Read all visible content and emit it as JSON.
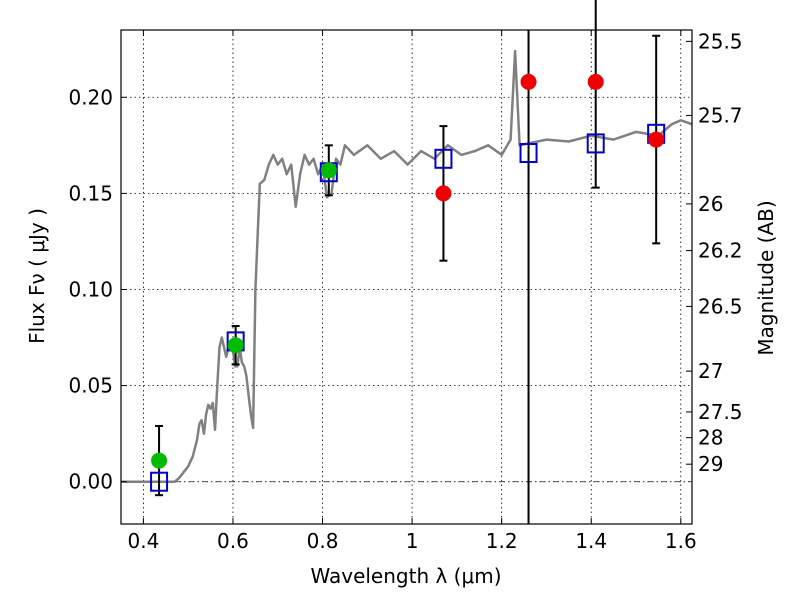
{
  "chart_data": {
    "type": "scatter",
    "xlabel": "Wavelength  λ (μm)",
    "ylabel": "Flux  Fν  ( μJy )",
    "ylabel_right": "Magnitude (AB)",
    "xlim": [
      0.35,
      1.625
    ],
    "ylim": [
      -0.022,
      0.235
    ],
    "x_ticks": [
      0.4,
      0.6,
      0.8,
      1.0,
      1.2,
      1.4,
      1.6
    ],
    "x_tick_labels": [
      "0.4",
      "0.6",
      "0.8",
      "1",
      "1.2",
      "1.4",
      "1.6"
    ],
    "y_ticks": [
      0.0,
      0.05,
      0.1,
      0.15,
      0.2
    ],
    "y_tick_labels": [
      "0.00",
      "0.05",
      "0.10",
      "0.15",
      "0.20"
    ],
    "right_ticks": [
      {
        "label": "25.5",
        "mag": 25.5
      },
      {
        "label": "25.7",
        "mag": 25.7
      },
      {
        "label": "26",
        "mag": 26.0
      },
      {
        "label": "26.2",
        "mag": 26.2
      },
      {
        "label": "26.5",
        "mag": 26.5
      },
      {
        "label": "27",
        "mag": 27.0
      },
      {
        "label": "27.5",
        "mag": 27.5
      },
      {
        "label": "28",
        "mag": 28.0
      },
      {
        "label": "29",
        "mag": 29.0
      }
    ],
    "grid": true,
    "vline_x": 1.26,
    "hline_y": 0.0,
    "series": [
      {
        "name": "model_sed",
        "kind": "line",
        "color": "#808080",
        "x": [
          0.35,
          0.47,
          0.48,
          0.5,
          0.51,
          0.52,
          0.525,
          0.53,
          0.535,
          0.54,
          0.545,
          0.55,
          0.555,
          0.56,
          0.565,
          0.57,
          0.575,
          0.58,
          0.585,
          0.59,
          0.6,
          0.605,
          0.61,
          0.615,
          0.62,
          0.625,
          0.63,
          0.635,
          0.64,
          0.645,
          0.65,
          0.66,
          0.67,
          0.68,
          0.69,
          0.7,
          0.71,
          0.72,
          0.73,
          0.74,
          0.75,
          0.76,
          0.77,
          0.78,
          0.79,
          0.8,
          0.81,
          0.82,
          0.83,
          0.84,
          0.85,
          0.87,
          0.9,
          0.93,
          0.96,
          0.99,
          1.02,
          1.05,
          1.08,
          1.11,
          1.14,
          1.17,
          1.2,
          1.22,
          1.23,
          1.235,
          1.24,
          1.26,
          1.3,
          1.35,
          1.4,
          1.45,
          1.5,
          1.55,
          1.58,
          1.6,
          1.625
        ],
        "y": [
          0.0,
          0.0,
          0.002,
          0.008,
          0.013,
          0.022,
          0.03,
          0.032,
          0.025,
          0.035,
          0.04,
          0.038,
          0.041,
          0.027,
          0.05,
          0.07,
          0.075,
          0.07,
          0.065,
          0.07,
          0.068,
          0.06,
          0.06,
          0.07,
          0.062,
          0.06,
          0.055,
          0.045,
          0.035,
          0.028,
          0.1,
          0.155,
          0.157,
          0.165,
          0.17,
          0.165,
          0.168,
          0.16,
          0.165,
          0.143,
          0.16,
          0.17,
          0.165,
          0.168,
          0.16,
          0.165,
          0.148,
          0.15,
          0.168,
          0.165,
          0.175,
          0.17,
          0.175,
          0.168,
          0.172,
          0.165,
          0.172,
          0.168,
          0.175,
          0.17,
          0.172,
          0.175,
          0.17,
          0.178,
          0.224,
          0.2,
          0.175,
          0.176,
          0.178,
          0.177,
          0.18,
          0.178,
          0.182,
          0.18,
          0.186,
          0.188,
          0.186
        ]
      },
      {
        "name": "model_photometry",
        "kind": "open_square",
        "color": "#0000cc",
        "x": [
          0.435,
          0.606,
          0.814,
          1.07,
          1.26,
          1.41,
          1.545
        ],
        "y": [
          0.0,
          0.073,
          0.161,
          0.168,
          0.171,
          0.176,
          0.181
        ]
      },
      {
        "name": "detections",
        "kind": "filled_circle",
        "color": "#00bb00",
        "x": [
          0.435,
          0.606,
          0.814
        ],
        "y": [
          0.011,
          0.071,
          0.162
        ],
        "err": [
          0.018,
          0.01,
          0.013
        ]
      },
      {
        "name": "other_points",
        "kind": "filled_circle",
        "color": "#ee0000",
        "x": [
          1.07,
          1.26,
          1.41,
          1.545
        ],
        "y": [
          0.15,
          0.208,
          0.208,
          0.178
        ],
        "err": [
          0.035,
          0.0,
          0.055,
          0.054
        ],
        "err_hi": [
          0.035,
          0.0,
          0.15,
          0.054
        ]
      }
    ]
  }
}
